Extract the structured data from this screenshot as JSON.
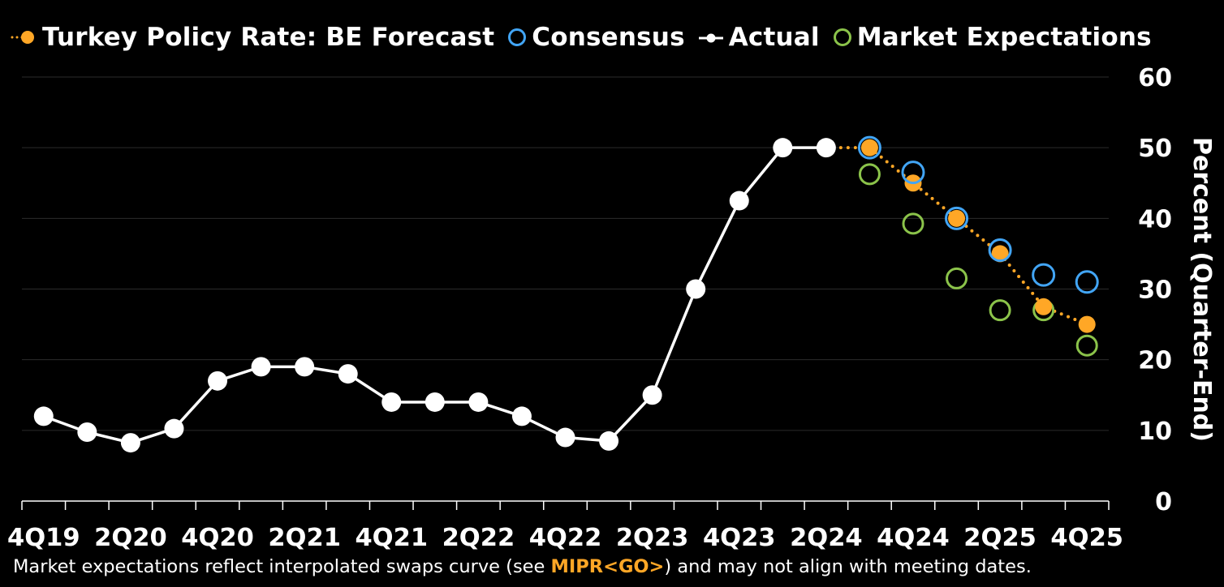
{
  "chart_data": {
    "type": "line",
    "categories": [
      "4Q19",
      "1Q20",
      "2Q20",
      "3Q20",
      "4Q20",
      "1Q21",
      "2Q21",
      "3Q21",
      "4Q21",
      "1Q22",
      "2Q22",
      "3Q22",
      "4Q22",
      "1Q23",
      "2Q23",
      "3Q23",
      "4Q23",
      "1Q24",
      "2Q24",
      "3Q24",
      "4Q24",
      "1Q25",
      "2Q25",
      "3Q25",
      "4Q25"
    ],
    "x_tick_labels": [
      "4Q19",
      "2Q20",
      "4Q20",
      "2Q21",
      "4Q21",
      "2Q22",
      "4Q22",
      "2Q23",
      "4Q23",
      "2Q24",
      "4Q24",
      "2Q25",
      "4Q25"
    ],
    "series": [
      {
        "name": "Turkey Policy Rate: BE Forecast",
        "style": "dotted-line-filled-markers",
        "color": "#ffa726",
        "values": [
          null,
          null,
          null,
          null,
          null,
          null,
          null,
          null,
          null,
          null,
          null,
          null,
          null,
          null,
          null,
          null,
          null,
          null,
          50,
          50,
          45,
          40,
          35,
          27.5,
          25
        ]
      },
      {
        "name": "Consensus",
        "style": "hollow-markers",
        "color": "#42a5f5",
        "values": [
          null,
          null,
          null,
          null,
          null,
          null,
          null,
          null,
          null,
          null,
          null,
          null,
          null,
          null,
          null,
          null,
          null,
          null,
          null,
          50,
          46.5,
          40,
          35.5,
          32,
          31
        ]
      },
      {
        "name": "Actual",
        "style": "line-filled-markers",
        "color": "#ffffff",
        "values": [
          12,
          9.75,
          8.25,
          10.25,
          17,
          19,
          19,
          18,
          14,
          14,
          14,
          12,
          9,
          8.5,
          15,
          30,
          42.5,
          50,
          50,
          null,
          null,
          null,
          null,
          null,
          null
        ]
      },
      {
        "name": "Market Expectations",
        "style": "hollow-markers",
        "color": "#8bc34a",
        "values": [
          null,
          null,
          null,
          null,
          null,
          null,
          null,
          null,
          null,
          null,
          null,
          null,
          null,
          null,
          null,
          null,
          null,
          null,
          null,
          46.25,
          39.25,
          31.5,
          27,
          27,
          22
        ]
      }
    ],
    "ylabel": "Percent (Quarter-End)",
    "ylim": [
      0,
      60
    ],
    "y_ticks": [
      0,
      10,
      20,
      30,
      40,
      50,
      60
    ],
    "y_axis_side": "right",
    "grid": true,
    "legend_position": "top",
    "footnote": {
      "before": "Market expectations reflect interpolated swaps curve (see ",
      "code": "MIPR<GO>",
      "after": ") and may not align with meeting dates."
    }
  }
}
